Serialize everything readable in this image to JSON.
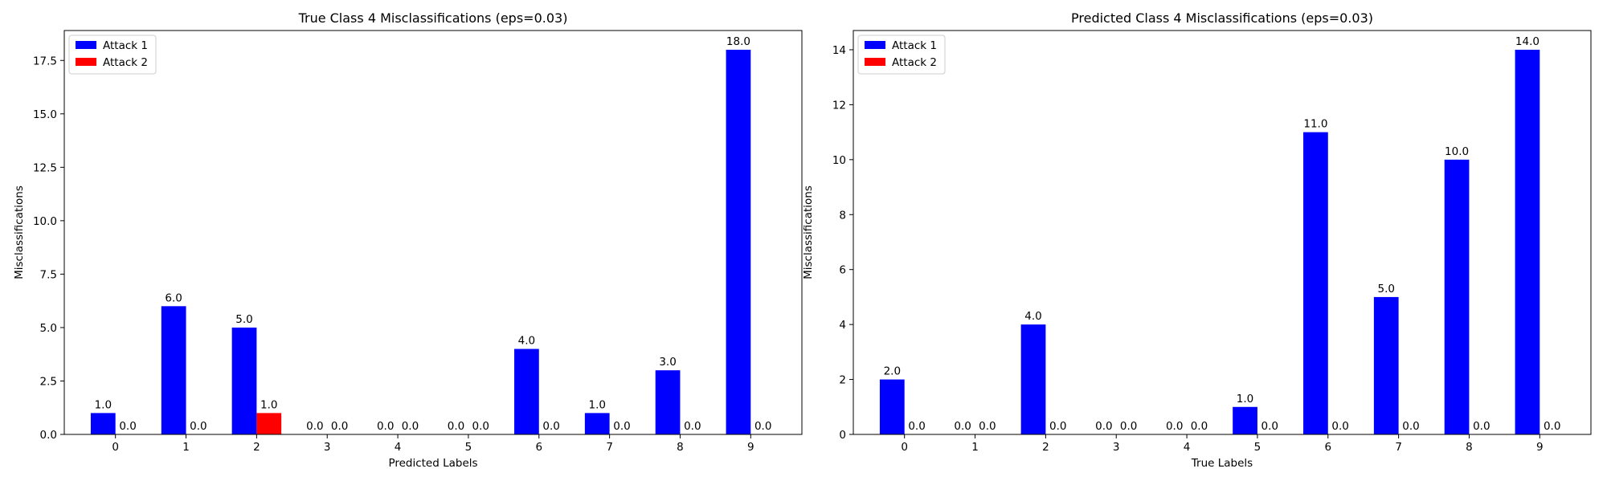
{
  "chart_data": [
    {
      "type": "bar",
      "title": "True Class 4 Misclassifications (eps=0.03)",
      "xlabel": "Predicted Labels",
      "ylabel": "Misclassifications",
      "categories": [
        "0",
        "1",
        "2",
        "3",
        "4",
        "5",
        "6",
        "7",
        "8",
        "9"
      ],
      "series": [
        {
          "name": "Attack 1",
          "color": "#0000ff",
          "values": [
            1,
            6,
            5,
            0,
            0,
            0,
            4,
            1,
            3,
            18
          ],
          "labels": [
            "1.0",
            "6.0",
            "5.0",
            "0.0",
            "0.0",
            "0.0",
            "4.0",
            "1.0",
            "3.0",
            "18.0"
          ]
        },
        {
          "name": "Attack 2",
          "color": "#ff0000",
          "values": [
            0,
            0,
            1,
            0,
            0,
            0,
            0,
            0,
            0,
            0
          ],
          "labels": [
            "0.0",
            "0.0",
            "1.0",
            "0.0",
            "0.0",
            "0.0",
            "0.0",
            "0.0",
            "0.0",
            "0.0"
          ]
        }
      ],
      "yticks": [
        0,
        2.5,
        5,
        7.5,
        10,
        12.5,
        15,
        17.5
      ],
      "ytick_labels": [
        "0.0",
        "2.5",
        "5.0",
        "7.5",
        "10.0",
        "12.5",
        "15.0",
        "17.5"
      ],
      "ylim": [
        0,
        18.9
      ],
      "legend": "upper-left",
      "grid": false
    },
    {
      "type": "bar",
      "title": "Predicted Class 4 Misclassifications (eps=0.03)",
      "xlabel": "True Labels",
      "ylabel": "Misclassifications",
      "categories": [
        "0",
        "1",
        "2",
        "3",
        "4",
        "5",
        "6",
        "7",
        "8",
        "9"
      ],
      "series": [
        {
          "name": "Attack 1",
          "color": "#0000ff",
          "values": [
            2,
            0,
            4,
            0,
            0,
            1,
            11,
            5,
            10,
            14
          ],
          "labels": [
            "2.0",
            "0.0",
            "4.0",
            "0.0",
            "0.0",
            "1.0",
            "11.0",
            "5.0",
            "10.0",
            "14.0"
          ]
        },
        {
          "name": "Attack 2",
          "color": "#ff0000",
          "values": [
            0,
            0,
            0,
            0,
            0,
            0,
            0,
            0,
            0,
            0
          ],
          "labels": [
            "0.0",
            "0.0",
            "0.0",
            "0.0",
            "0.0",
            "0.0",
            "0.0",
            "0.0",
            "0.0",
            "0.0"
          ]
        }
      ],
      "yticks": [
        0,
        2,
        4,
        6,
        8,
        10,
        12,
        14
      ],
      "ytick_labels": [
        "0",
        "2",
        "4",
        "6",
        "8",
        "10",
        "12",
        "14"
      ],
      "ylim": [
        0,
        14.7
      ],
      "legend": "upper-left",
      "grid": false
    }
  ]
}
